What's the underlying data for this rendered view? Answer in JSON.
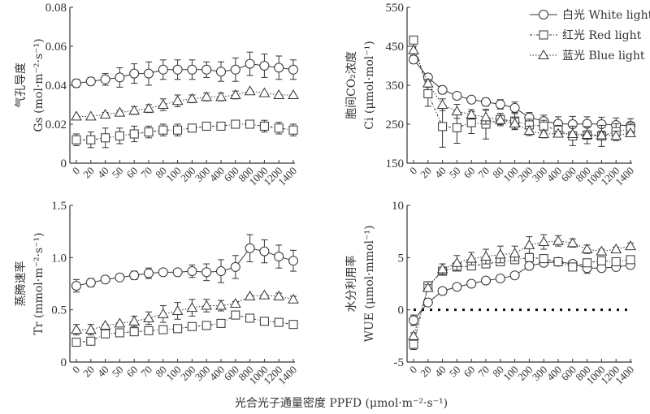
{
  "chart_data": [
    {
      "type": "line",
      "id": "gs",
      "ylabel_cn": "气孔导度",
      "ylabel_en": "Gs (mol·m⁻²·s⁻¹)",
      "ylim": [
        0,
        0.08
      ],
      "yticks": [
        0,
        0.02,
        0.04,
        0.06,
        0.08
      ],
      "ytick_labels": [
        "0",
        "0.02",
        "0.04",
        "0.06",
        "0.08"
      ],
      "categories": [
        "0",
        "20",
        "40",
        "50",
        "60",
        "70",
        "80",
        "100",
        "200",
        "300",
        "400",
        "600",
        "800",
        "1000",
        "1200",
        "1400"
      ],
      "series": [
        {
          "name": "白光 White light",
          "marker": "circle",
          "line": "solid",
          "values": [
            0.041,
            0.042,
            0.043,
            0.044,
            0.046,
            0.046,
            0.048,
            0.048,
            0.048,
            0.048,
            0.047,
            0.048,
            0.051,
            0.05,
            0.049,
            0.048
          ],
          "errors": [
            0.002,
            0.002,
            0.003,
            0.005,
            0.005,
            0.006,
            0.005,
            0.005,
            0.005,
            0.004,
            0.005,
            0.006,
            0.006,
            0.006,
            0.006,
            0.005
          ]
        },
        {
          "name": "红光 Red light",
          "marker": "square",
          "line": "dashdot",
          "values": [
            0.012,
            0.012,
            0.013,
            0.014,
            0.015,
            0.016,
            0.017,
            0.017,
            0.018,
            0.019,
            0.019,
            0.02,
            0.02,
            0.019,
            0.018,
            0.017
          ],
          "errors": [
            0.003,
            0.004,
            0.005,
            0.004,
            0.004,
            0.003,
            0.003,
            0.003,
            0.002,
            0.001,
            0.001,
            0.002,
            0.002,
            0.003,
            0.003,
            0.003
          ]
        },
        {
          "name": "蓝光 Blue light",
          "marker": "triangle",
          "line": "dotted",
          "values": [
            0.024,
            0.024,
            0.025,
            0.026,
            0.027,
            0.028,
            0.03,
            0.032,
            0.033,
            0.034,
            0.034,
            0.035,
            0.037,
            0.036,
            0.035,
            0.035
          ],
          "errors": [
            0,
            0,
            0.001,
            0.001,
            0.002,
            0.002,
            0.003,
            0.003,
            0.002,
            0.002,
            0.002,
            0.002,
            0,
            0,
            0,
            0
          ]
        }
      ]
    },
    {
      "type": "line",
      "id": "ci",
      "ylabel_cn": "胞间CO₂浓度",
      "ylabel_en": "Ci (μmol·mol⁻¹)",
      "ylim": [
        150,
        550
      ],
      "yticks": [
        150,
        250,
        350,
        450,
        550
      ],
      "ytick_labels": [
        "150",
        "250",
        "350",
        "450",
        "550"
      ],
      "categories": [
        "0",
        "20",
        "40",
        "50",
        "60",
        "70",
        "80",
        "100",
        "200",
        "300",
        "400",
        "600",
        "800",
        "1000",
        "1200",
        "1400"
      ],
      "series": [
        {
          "name": "白光 White light",
          "marker": "circle",
          "line": "solid",
          "values": [
            416,
            370,
            338,
            323,
            313,
            307,
            301,
            292,
            267,
            258,
            251,
            250,
            251,
            250,
            248,
            246
          ],
          "errors": [
            10,
            5,
            10,
            5,
            8,
            10,
            12,
            15,
            13,
            15,
            18,
            20,
            18,
            18,
            18,
            18
          ]
        },
        {
          "name": "红光 Red light",
          "marker": "square",
          "line": "dashdot",
          "values": [
            466,
            328,
            244,
            241,
            254,
            250,
            262,
            258,
            248,
            245,
            235,
            220,
            222,
            220,
            231,
            238
          ],
          "errors": [
            8,
            32,
            53,
            40,
            28,
            38,
            16,
            22,
            15,
            15,
            12,
            25,
            22,
            27,
            20,
            15
          ]
        },
        {
          "name": "蓝光 Blue light",
          "marker": "triangle",
          "line": "dotted",
          "values": [
            440,
            355,
            300,
            283,
            275,
            268,
            261,
            252,
            233,
            225,
            226,
            225,
            223,
            222,
            220,
            227
          ],
          "errors": [
            10,
            10,
            15,
            18,
            12,
            18,
            12,
            14,
            12,
            10,
            6,
            5,
            5,
            5,
            12,
            5
          ]
        }
      ]
    },
    {
      "type": "line",
      "id": "tr",
      "ylabel_cn": "蒸腾速率",
      "ylabel_en": "Tr (mmol·m⁻²·s⁻¹)",
      "ylim": [
        0,
        1.5
      ],
      "yticks": [
        0,
        0.5,
        1.0,
        1.5
      ],
      "ytick_labels": [
        "0",
        "0.5",
        "1.0",
        "1.5"
      ],
      "categories": [
        "0",
        "20",
        "40",
        "50",
        "60",
        "70",
        "80",
        "100",
        "200",
        "300",
        "400",
        "600",
        "800",
        "1000",
        "1200",
        "1400"
      ],
      "series": [
        {
          "name": "白光 White light",
          "marker": "circle",
          "line": "solid",
          "values": [
            0.73,
            0.76,
            0.79,
            0.81,
            0.83,
            0.85,
            0.86,
            0.86,
            0.87,
            0.86,
            0.87,
            0.91,
            1.09,
            1.06,
            1.01,
            0.97
          ],
          "errors": [
            0.06,
            0.04,
            0.01,
            0.03,
            0.04,
            0.05,
            0.02,
            0.03,
            0.06,
            0.08,
            0.11,
            0.11,
            0.13,
            0.11,
            0.11,
            0.1
          ]
        },
        {
          "name": "红光 Red light",
          "marker": "square",
          "line": "dashdot",
          "values": [
            0.19,
            0.2,
            0.27,
            0.28,
            0.29,
            0.3,
            0.31,
            0.32,
            0.34,
            0.35,
            0.37,
            0.45,
            0.42,
            0.39,
            0.38,
            0.36
          ],
          "errors": [
            0.02,
            0.02,
            0.01,
            0.01,
            0.01,
            0.01,
            0.01,
            0.01,
            0.01,
            0.01,
            0.01,
            0.01,
            0.01,
            0.01,
            0.01,
            0.01
          ]
        },
        {
          "name": "蓝光 Blue light",
          "marker": "triangle",
          "line": "dotted",
          "values": [
            0.31,
            0.31,
            0.35,
            0.37,
            0.39,
            0.42,
            0.46,
            0.49,
            0.52,
            0.54,
            0.54,
            0.56,
            0.63,
            0.64,
            0.63,
            0.6
          ],
          "errors": [
            0.05,
            0.05,
            0.01,
            0.01,
            0.05,
            0.06,
            0.08,
            0.08,
            0.08,
            0.06,
            0.05,
            0.02,
            0.01,
            0.01,
            0.03,
            0.03
          ]
        }
      ]
    },
    {
      "type": "line",
      "id": "wue",
      "ylabel_cn": "水分利用率",
      "ylabel_en": "WUE (μmol·mmol⁻¹)",
      "ylim": [
        -5,
        10
      ],
      "yticks": [
        -5,
        0,
        5,
        10
      ],
      "ytick_labels": [
        "-5",
        "0",
        "5",
        "10"
      ],
      "reference_line": 0,
      "categories": [
        "0",
        "20",
        "40",
        "50",
        "60",
        "70",
        "80",
        "100",
        "200",
        "300",
        "400",
        "600",
        "800",
        "1000",
        "1200",
        "1400"
      ],
      "series": [
        {
          "name": "白光 White light",
          "marker": "circle",
          "line": "solid",
          "values": [
            -1.0,
            0.7,
            1.8,
            2.2,
            2.5,
            2.8,
            3.0,
            3.3,
            4.2,
            4.5,
            4.6,
            4.4,
            4.0,
            4.0,
            4.1,
            4.3
          ],
          "errors": [
            0.5,
            0.1,
            0.3,
            0.1,
            0.1,
            0.1,
            0.1,
            0.1,
            0.1,
            0.2,
            0.2,
            0.3,
            0.5,
            0.3,
            0.3,
            0.3
          ]
        },
        {
          "name": "红光 Red light",
          "marker": "square",
          "line": "dashdot",
          "values": [
            -3.3,
            2.3,
            3.7,
            4.1,
            4.2,
            4.4,
            4.6,
            4.8,
            5.0,
            4.9,
            4.6,
            4.1,
            4.5,
            4.7,
            4.6,
            4.8
          ],
          "errors": [
            0.5,
            0.4,
            0.3,
            0.2,
            0.2,
            0.3,
            0.3,
            0.2,
            0.2,
            0.2,
            0.2,
            0.2,
            0.2,
            0.2,
            0.2,
            0.2
          ]
        },
        {
          "name": "蓝光 Blue light",
          "marker": "triangle",
          "line": "dotted",
          "values": [
            -2.5,
            2.1,
            3.9,
            4.5,
            4.9,
            5.1,
            5.3,
            5.4,
            6.2,
            6.5,
            6.6,
            6.4,
            5.8,
            5.6,
            5.8,
            6.1
          ],
          "errors": [
            0.3,
            0.3,
            0.5,
            0.7,
            0.6,
            0.7,
            0.8,
            0.7,
            0.8,
            0.7,
            0.5,
            0.4,
            0.4,
            0.2,
            0.2,
            0.3
          ]
        }
      ]
    }
  ],
  "legend": {
    "placement": "top-right",
    "items": [
      {
        "label": "白光 White light",
        "marker": "circle",
        "line": "solid"
      },
      {
        "label": "红光 Red light",
        "marker": "square",
        "line": "dashdot"
      },
      {
        "label": "蓝光 Blue light",
        "marker": "triangle",
        "line": "dotted"
      }
    ]
  },
  "xlabel": "光合光子通量密度  PPFD (μmol·m⁻²·s⁻¹)"
}
